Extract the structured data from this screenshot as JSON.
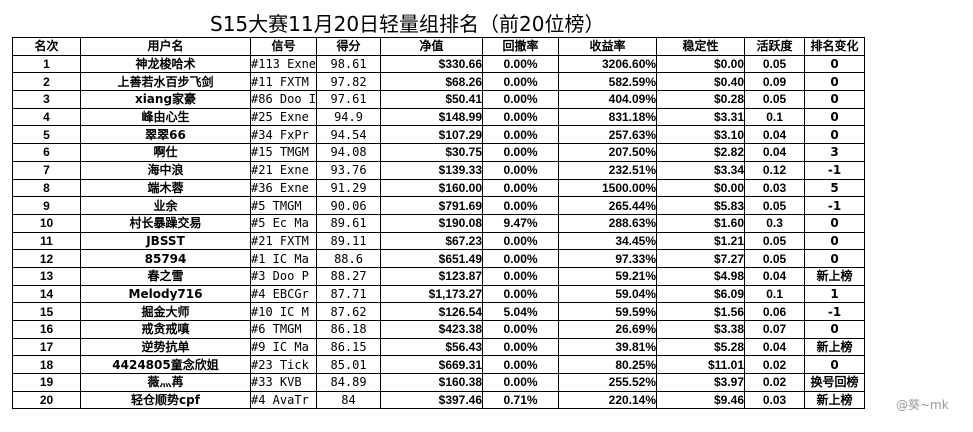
{
  "title": "S15大赛11月20日轻量组排名（前20位榜）",
  "headers": [
    "名次",
    "用户名",
    "信号",
    "得分",
    "净值",
    "回撤率",
    "收益率",
    "稳定性",
    "活跃度",
    "排名变化"
  ],
  "rows": [
    {
      "rank": "1",
      "user": "神龙梭哈术",
      "signal": "#113 Exne",
      "score": "98.61",
      "nav": "$330.66",
      "drawdown": "0.00%",
      "return": "3206.60%",
      "stability": "$0.00",
      "activity": "0.05",
      "change": "0"
    },
    {
      "rank": "2",
      "user": "上善若水百步飞剑",
      "signal": "#11 FXTM",
      "score": "97.82",
      "nav": "$68.26",
      "drawdown": "0.00%",
      "return": "582.59%",
      "stability": "$0.40",
      "activity": "0.09",
      "change": "0"
    },
    {
      "rank": "3",
      "user": "xiang家豪",
      "signal": "#86 Doo I",
      "score": "97.61",
      "nav": "$50.41",
      "drawdown": "0.00%",
      "return": "404.09%",
      "stability": "$0.28",
      "activity": "0.05",
      "change": "0"
    },
    {
      "rank": "4",
      "user": "峰由心生",
      "signal": "#25 Exne",
      "score": "94.9",
      "nav": "$148.99",
      "drawdown": "0.00%",
      "return": "831.18%",
      "stability": "$3.31",
      "activity": "0.1",
      "change": "0"
    },
    {
      "rank": "5",
      "user": "翠翠66",
      "signal": "#34 FxPr",
      "score": "94.54",
      "nav": "$107.29",
      "drawdown": "0.00%",
      "return": "257.63%",
      "stability": "$3.10",
      "activity": "0.04",
      "change": "0"
    },
    {
      "rank": "6",
      "user": "啊仕",
      "signal": "#15 TMGM",
      "score": "94.08",
      "nav": "$30.75",
      "drawdown": "0.00%",
      "return": "207.50%",
      "stability": "$2.82",
      "activity": "0.04",
      "change": "3"
    },
    {
      "rank": "7",
      "user": "海中浪",
      "signal": "#21 Exne",
      "score": "93.76",
      "nav": "$139.33",
      "drawdown": "0.00%",
      "return": "232.51%",
      "stability": "$3.34",
      "activity": "0.12",
      "change": "-1"
    },
    {
      "rank": "8",
      "user": "端木蓉",
      "signal": "#36 Exne",
      "score": "91.29",
      "nav": "$160.00",
      "drawdown": "0.00%",
      "return": "1500.00%",
      "stability": "$0.00",
      "activity": "0.03",
      "change": "5"
    },
    {
      "rank": "9",
      "user": "业余",
      "signal": "#5 TMGM",
      "score": "90.06",
      "nav": "$791.69",
      "drawdown": "0.00%",
      "return": "265.44%",
      "stability": "$5.83",
      "activity": "0.05",
      "change": "-1"
    },
    {
      "rank": "10",
      "user": "村长暴躁交易",
      "signal": "#5 Ec Ma",
      "score": "89.61",
      "nav": "$190.08",
      "drawdown": "9.47%",
      "return": "288.63%",
      "stability": "$1.60",
      "activity": "0.3",
      "change": "0"
    },
    {
      "rank": "11",
      "user": "JBSST",
      "signal": "#21 FXTM",
      "score": "89.11",
      "nav": "$67.23",
      "drawdown": "0.00%",
      "return": "34.45%",
      "stability": "$1.21",
      "activity": "0.05",
      "change": "0"
    },
    {
      "rank": "12",
      "user": "85794",
      "signal": "#1 IC Ma",
      "score": "88.6",
      "nav": "$651.49",
      "drawdown": "0.00%",
      "return": "97.33%",
      "stability": "$7.27",
      "activity": "0.05",
      "change": "0"
    },
    {
      "rank": "13",
      "user": "春之雪",
      "signal": "#3 Doo P",
      "score": "88.27",
      "nav": "$123.87",
      "drawdown": "0.00%",
      "return": "59.21%",
      "stability": "$4.98",
      "activity": "0.04",
      "change": "新上榜"
    },
    {
      "rank": "14",
      "user": "Melody716",
      "signal": "#4 EBCGr",
      "score": "87.71",
      "nav": "$1,173.27",
      "drawdown": "0.00%",
      "return": "59.04%",
      "stability": "$6.09",
      "activity": "0.1",
      "change": "1"
    },
    {
      "rank": "15",
      "user": "掘金大师",
      "signal": "#10 IC M",
      "score": "87.62",
      "nav": "$126.54",
      "drawdown": "5.04%",
      "return": "59.59%",
      "stability": "$1.56",
      "activity": "0.06",
      "change": "-1"
    },
    {
      "rank": "16",
      "user": "戒贪戒嗔",
      "signal": "#6 TMGM",
      "score": "86.18",
      "nav": "$423.38",
      "drawdown": "0.00%",
      "return": "26.69%",
      "stability": "$3.38",
      "activity": "0.07",
      "change": "0"
    },
    {
      "rank": "17",
      "user": "逆势抗单",
      "signal": "#9 IC Ma",
      "score": "86.15",
      "nav": "$56.43",
      "drawdown": "0.00%",
      "return": "39.81%",
      "stability": "$5.28",
      "activity": "0.04",
      "change": "新上榜"
    },
    {
      "rank": "18",
      "user": "4424805童念欣姐",
      "signal": "#23 Tick",
      "score": "85.01",
      "nav": "$669.31",
      "drawdown": "0.00%",
      "return": "80.25%",
      "stability": "$11.01",
      "activity": "0.02",
      "change": "0"
    },
    {
      "rank": "19",
      "user": "薇灬苒",
      "signal": "#33 KVB",
      "score": "84.89",
      "nav": "$160.38",
      "drawdown": "0.00%",
      "return": "255.52%",
      "stability": "$3.97",
      "activity": "0.02",
      "change": "换号回榜"
    },
    {
      "rank": "20",
      "user": "轻仓顺势cpf",
      "signal": "#4 AvaTr",
      "score": "84",
      "nav": "$397.46",
      "drawdown": "0.71%",
      "return": "220.14%",
      "stability": "$9.46",
      "activity": "0.03",
      "change": "新上榜"
    }
  ],
  "watermark": "@葵~mk"
}
